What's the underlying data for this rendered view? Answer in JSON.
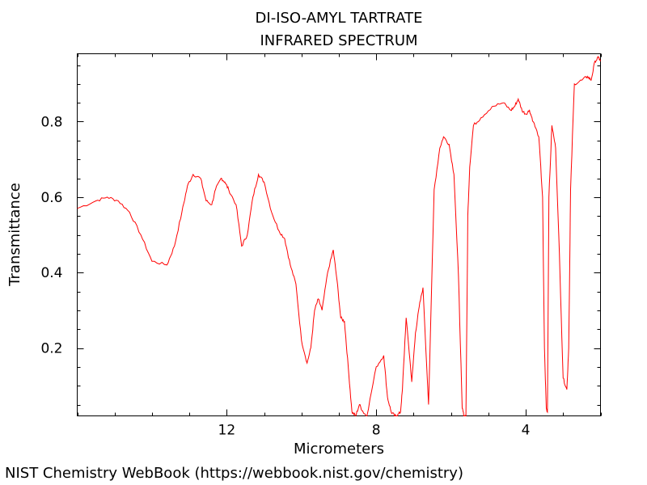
{
  "chart_data": {
    "type": "line",
    "title_line1": "DI-ISO-AMYL TARTRATE",
    "title_line2": "INFRARED SPECTRUM",
    "xlabel": "Micrometers",
    "ylabel": "Transmittance",
    "x_reversed": true,
    "xlim": [
      16.0,
      2.0
    ],
    "ylim": [
      0.02,
      0.98
    ],
    "xticks": [
      {
        "value": 12,
        "label": "12"
      },
      {
        "value": 8,
        "label": "8"
      },
      {
        "value": 4,
        "label": "4"
      }
    ],
    "yticks": [
      {
        "value": 0.2,
        "label": "0.2"
      },
      {
        "value": 0.4,
        "label": "0.4"
      },
      {
        "value": 0.6,
        "label": "0.6"
      },
      {
        "value": 0.8,
        "label": "0.8"
      }
    ],
    "grid": false,
    "series": [
      {
        "color": "#ff0000",
        "x": [
          16.0,
          15.5,
          15.2,
          14.9,
          14.6,
          14.3,
          14.0,
          13.6,
          13.4,
          13.2,
          13.05,
          12.9,
          12.7,
          12.55,
          12.4,
          12.3,
          12.15,
          12.05,
          11.95,
          11.75,
          11.6,
          11.45,
          11.3,
          11.15,
          11.0,
          10.8,
          10.6,
          10.45,
          10.3,
          10.15,
          10.0,
          9.85,
          9.75,
          9.65,
          9.55,
          9.45,
          9.3,
          9.15,
          9.05,
          8.95,
          8.85,
          8.75,
          8.65,
          8.55,
          8.45,
          8.35,
          8.25,
          8.0,
          7.8,
          7.7,
          7.6,
          7.5,
          7.45,
          7.35,
          7.3,
          7.2,
          7.1,
          7.05,
          6.95,
          6.85,
          6.75,
          6.6,
          6.45,
          6.3,
          6.2,
          6.05,
          5.92,
          5.8,
          5.7,
          5.65,
          5.6,
          5.55,
          5.5,
          5.4,
          5.2,
          4.9,
          4.6,
          4.4,
          4.3,
          4.2,
          4.1,
          4.0,
          3.9,
          3.8,
          3.65,
          3.55,
          3.5,
          3.45,
          3.42,
          3.38,
          3.3,
          3.2,
          3.1,
          3.0,
          2.9,
          2.85,
          2.8,
          2.7,
          2.5,
          2.35,
          2.25,
          2.15,
          2.05,
          2.0
        ],
        "y": [
          0.57,
          0.59,
          0.6,
          0.59,
          0.56,
          0.5,
          0.43,
          0.42,
          0.47,
          0.56,
          0.63,
          0.66,
          0.65,
          0.59,
          0.58,
          0.62,
          0.65,
          0.64,
          0.62,
          0.58,
          0.47,
          0.5,
          0.6,
          0.66,
          0.64,
          0.56,
          0.51,
          0.49,
          0.42,
          0.37,
          0.22,
          0.16,
          0.2,
          0.3,
          0.33,
          0.3,
          0.4,
          0.46,
          0.38,
          0.28,
          0.27,
          0.15,
          0.03,
          0.02,
          0.05,
          0.03,
          0.02,
          0.15,
          0.18,
          0.07,
          0.03,
          0.02,
          0.02,
          0.03,
          0.09,
          0.28,
          0.17,
          0.11,
          0.24,
          0.31,
          0.36,
          0.05,
          0.62,
          0.73,
          0.76,
          0.74,
          0.66,
          0.39,
          0.04,
          0.02,
          0.02,
          0.55,
          0.68,
          0.79,
          0.81,
          0.84,
          0.85,
          0.83,
          0.84,
          0.86,
          0.83,
          0.82,
          0.83,
          0.8,
          0.76,
          0.6,
          0.2,
          0.04,
          0.03,
          0.6,
          0.79,
          0.73,
          0.45,
          0.12,
          0.09,
          0.2,
          0.62,
          0.9,
          0.91,
          0.92,
          0.91,
          0.96,
          0.97,
          0.96
        ]
      }
    ]
  },
  "credit": "NIST Chemistry WebBook (https://webbook.nist.gov/chemistry)"
}
